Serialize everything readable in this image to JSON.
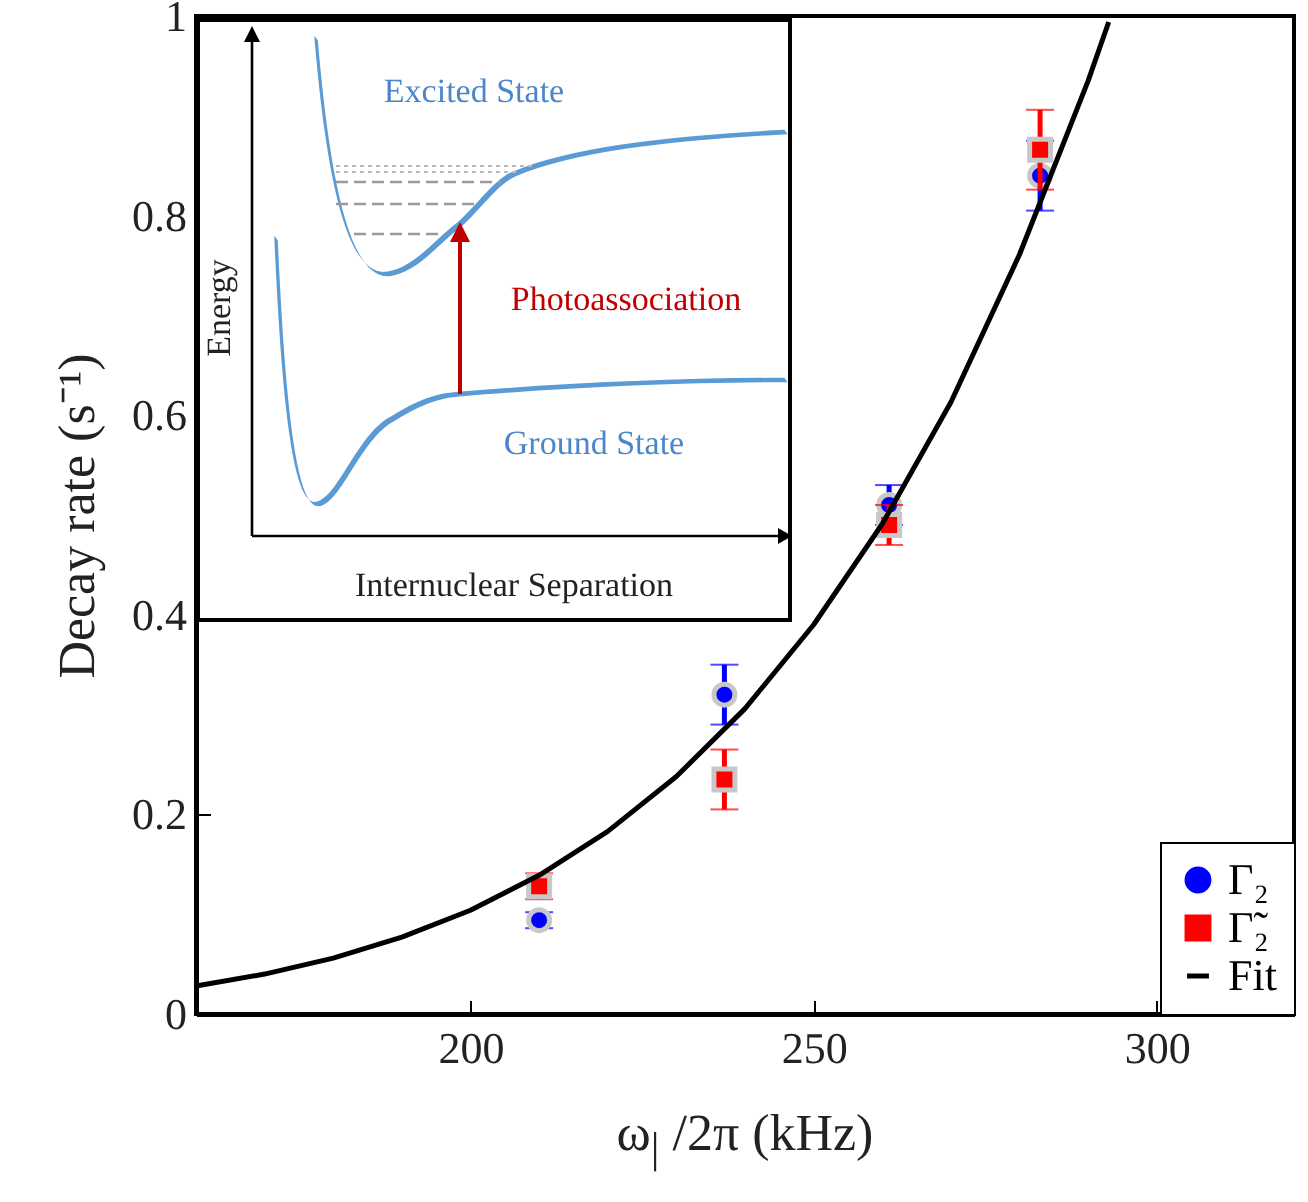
{
  "chart_data": {
    "type": "scatter",
    "xlabel": "ω$_{|}$ /2π (kHz)",
    "ylabel": "Decay rate (s⁻¹)",
    "x": [
      210,
      237,
      261,
      283
    ],
    "xlim": [
      160,
      320
    ],
    "xticks": [
      200,
      250,
      300
    ],
    "ylim": [
      0,
      1
    ],
    "yticks": [
      0,
      0.2,
      0.4,
      0.6,
      0.8,
      1
    ],
    "grid": false,
    "legend": "bottom right",
    "annotations": [
      "Excited State",
      "Ground State",
      "Photoassociation",
      "Energy",
      "Internuclear Separation"
    ],
    "series": [
      {
        "name": "Γ₂",
        "color": "#0000ff",
        "marker": "circle",
        "values": [
          0.094,
          0.32,
          0.51,
          0.84
        ],
        "errors": [
          0.008,
          0.03,
          0.02,
          0.035
        ]
      },
      {
        "name": "Γ̃₂",
        "color": "#ff0000",
        "marker": "square",
        "values": [
          0.128,
          0.235,
          0.49,
          0.866
        ],
        "errors": [
          0.013,
          0.03,
          0.02,
          0.04
        ]
      },
      {
        "name": "Fit",
        "type": "line",
        "color": "#000000",
        "marker": "none",
        "x": [
          160,
          170,
          180,
          190,
          200,
          210,
          220,
          230,
          240,
          250,
          260,
          270,
          280,
          290,
          293
        ],
        "values": [
          0.028,
          0.04,
          0.056,
          0.077,
          0.104,
          0.139,
          0.183,
          0.238,
          0.306,
          0.39,
          0.491,
          0.613,
          0.761,
          0.935,
          0.994
        ]
      }
    ]
  }
}
